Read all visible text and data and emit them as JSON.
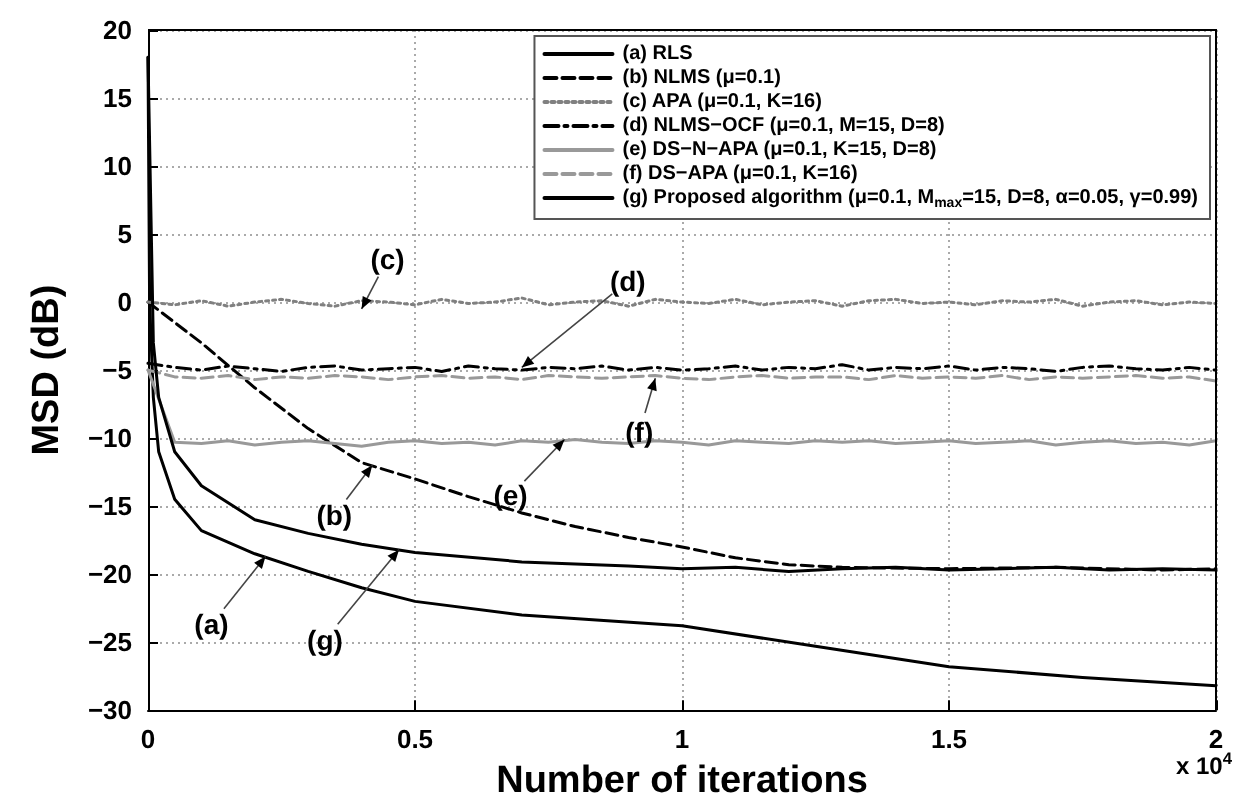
{
  "chart_data": {
    "type": "line",
    "xlabel": "Number of iterations",
    "ylabel": "MSD (dB)",
    "x": [
      0,
      0.05,
      0.1,
      0.15,
      0.2,
      0.25,
      0.3,
      0.35,
      0.4,
      0.45,
      0.5,
      0.55,
      0.6,
      0.65,
      0.7,
      0.75,
      0.8,
      0.85,
      0.9,
      0.95,
      1,
      1.05,
      1.1,
      1.15,
      1.2,
      1.25,
      1.3,
      1.35,
      1.4,
      1.45,
      1.5,
      1.55,
      1.6,
      1.65,
      1.7,
      1.75,
      1.8,
      1.85,
      1.9,
      1.95,
      2
    ],
    "xlim": [
      0,
      2
    ],
    "xticks": [
      0,
      0.5,
      1,
      1.5,
      2
    ],
    "ylim": [
      -30,
      20
    ],
    "yticks": [
      -30,
      -25,
      -20,
      -15,
      -10,
      -5,
      0,
      5,
      10,
      15,
      20
    ],
    "grid": true,
    "legend": "top right",
    "marker": "none",
    "series": [
      {
        "name": "(a) RLS",
        "color": "#000000",
        "line_style": "solid",
        "x": [
          0,
          0.003,
          0.01,
          0.02,
          0.05,
          0.1,
          0.2,
          0.3,
          0.4,
          0.5,
          0.7,
          1,
          1.25,
          1.5,
          1.75,
          2
        ],
        "values": [
          18,
          0,
          -7,
          -11,
          -14.5,
          -16.8,
          -18.5,
          -19.8,
          -21,
          -22,
          -23,
          -23.8,
          -25.3,
          -26.8,
          -27.6,
          -28.2
        ]
      },
      {
        "name": "(b) NLMS (μ=0.1)",
        "color": "#000000",
        "line_style": "dashed",
        "x": [
          0,
          0.1,
          0.2,
          0.3,
          0.4,
          0.5,
          0.6,
          0.7,
          0.8,
          0.9,
          1,
          1.1,
          1.2,
          1.3,
          1.5,
          1.7,
          1.9,
          2
        ],
        "values": [
          0,
          -3,
          -6.3,
          -9.3,
          -11.8,
          -13,
          -14.3,
          -15.5,
          -16.5,
          -17.3,
          -18,
          -18.8,
          -19.3,
          -19.5,
          -19.6,
          -19.5,
          -19.7,
          -19.6
        ]
      },
      {
        "name": "(c) APA (μ=0.1, K=16)",
        "color": "#808080",
        "line_style": "dotted",
        "values": [
          0,
          -0.2,
          0.1,
          -0.3,
          0,
          0.2,
          -0.1,
          -0.3,
          0.1,
          0,
          -0.2,
          0.2,
          -0.1,
          0,
          0.3,
          -0.2,
          0,
          0.1,
          -0.3,
          0.2,
          0,
          -0.1,
          0.2,
          -0.2,
          0,
          0.1,
          -0.3,
          0.1,
          0.2,
          -0.1,
          0,
          -0.2,
          0.1,
          0,
          0.2,
          -0.3,
          0,
          0.1,
          -0.2,
          0,
          -0.1
        ]
      },
      {
        "name": "(d) NLMS−OCF (μ=0.1, M=15, D=8)",
        "color": "#000000",
        "line_style": "dashdot",
        "values": [
          -4.5,
          -4.8,
          -5,
          -4.7,
          -4.9,
          -5.1,
          -4.8,
          -4.7,
          -5,
          -4.9,
          -4.8,
          -5.1,
          -4.7,
          -4.9,
          -5,
          -4.8,
          -4.9,
          -4.7,
          -5,
          -4.8,
          -5,
          -4.9,
          -4.7,
          -5,
          -4.8,
          -4.9,
          -4.6,
          -5,
          -4.8,
          -4.9,
          -4.7,
          -5,
          -4.8,
          -4.9,
          -5.1,
          -4.8,
          -4.7,
          -4.9,
          -5,
          -4.8,
          -5
        ]
      },
      {
        "name": "(e) DS−N−APA (μ=0.1, K=15, D=8)",
        "color": "#999999",
        "line_style": "solid",
        "values": [
          -5,
          -10.3,
          -10.4,
          -10.2,
          -10.5,
          -10.3,
          -10.2,
          -10.4,
          -10.6,
          -10.3,
          -10.2,
          -10.4,
          -10.3,
          -10.5,
          -10.2,
          -10.3,
          -10.1,
          -10.3,
          -10.4,
          -10.2,
          -10.3,
          -10.5,
          -10.2,
          -10.3,
          -10.4,
          -10.2,
          -10.3,
          -10.2,
          -10.4,
          -10.3,
          -10.2,
          -10.4,
          -10.3,
          -10.2,
          -10.5,
          -10.3,
          -10.2,
          -10.4,
          -10.3,
          -10.5,
          -10.2
        ]
      },
      {
        "name": "(f) DS−APA (μ=0.1, K=16)",
        "color": "#999999",
        "line_style": "dashed",
        "values": [
          -5,
          -5.5,
          -5.6,
          -5.4,
          -5.7,
          -5.5,
          -5.6,
          -5.4,
          -5.5,
          -5.7,
          -5.5,
          -5.4,
          -5.6,
          -5.5,
          -5.7,
          -5.4,
          -5.5,
          -5.6,
          -5.5,
          -5.4,
          -5.6,
          -5.7,
          -5.5,
          -5.4,
          -5.6,
          -5.5,
          -5.5,
          -5.7,
          -5.4,
          -5.6,
          -5.5,
          -5.6,
          -5.4,
          -5.7,
          -5.5,
          -5.6,
          -5.5,
          -5.4,
          -5.6,
          -5.5,
          -5.8
        ]
      },
      {
        "name": "(g) Proposed algorithm (μ=0.1, M$_{max}$=15, D=8, α=0.05, γ=0.99)",
        "color": "#000000",
        "line_style": "solid",
        "x": [
          0,
          0.01,
          0.02,
          0.05,
          0.1,
          0.2,
          0.3,
          0.4,
          0.5,
          0.7,
          0.9,
          1,
          1.1,
          1.2,
          1.3,
          1.4,
          1.5,
          1.6,
          1.7,
          1.8,
          1.9,
          2
        ],
        "values": [
          18,
          -3,
          -7,
          -11,
          -13.5,
          -16,
          -17,
          -17.8,
          -18.4,
          -19.1,
          -19.4,
          -19.6,
          -19.5,
          -19.8,
          -19.6,
          -19.5,
          -19.7,
          -19.6,
          -19.5,
          -19.7,
          -19.6,
          -19.7
        ]
      }
    ],
    "annotations": [
      {
        "text": "(a)",
        "x": 0.22,
        "y": -18.7
      },
      {
        "text": "(b)",
        "x": 0.42,
        "y": -12
      },
      {
        "text": "(c)",
        "x": 0.4,
        "y": -0.5
      },
      {
        "text": "(d)",
        "x": 0.7,
        "y": -4.8
      },
      {
        "text": "(e)",
        "x": 0.78,
        "y": -10.1
      },
      {
        "text": "(f)",
        "x": 0.95,
        "y": -5.6
      },
      {
        "text": "(g)",
        "x": 0.47,
        "y": -18.2
      },
      "x 10$^{4}$"
    ]
  }
}
